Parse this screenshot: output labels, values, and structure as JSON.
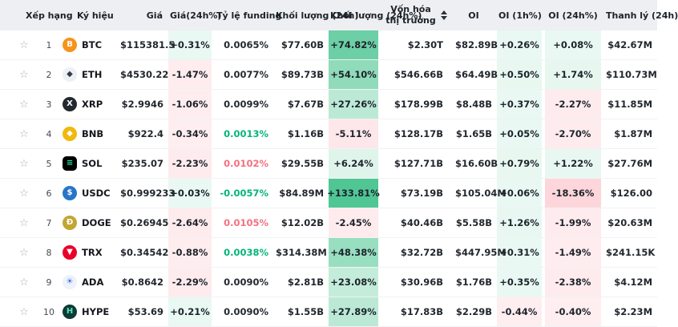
{
  "colors": {
    "header_bg": "#edeff2",
    "positive_rgb": "42,186,124",
    "negative_rgb": "244,88,106",
    "funding_green": "#04b578",
    "funding_red": "#f4707f",
    "row_border": "#f1f2f4"
  },
  "table": {
    "columns": [
      {
        "key": "rank",
        "label": "Xếp hạng"
      },
      {
        "key": "symbol",
        "label": "Ký hiệu"
      },
      {
        "key": "price",
        "label": "Giá"
      },
      {
        "key": "price_chg",
        "label": "Giá(24h%)"
      },
      {
        "key": "funding",
        "label": "Tỷ lệ funding"
      },
      {
        "key": "volume",
        "label": "Khối lượng (24h)"
      },
      {
        "key": "volume_chg",
        "label": "Khối lượng (24h%)"
      },
      {
        "key": "mcap",
        "label": "Vốn hóa thị trường",
        "sortable": true
      },
      {
        "key": "oi",
        "label": "OI"
      },
      {
        "key": "oi_1h",
        "label": "OI (1h%)"
      },
      {
        "key": "oi_24h",
        "label": "OI (24h%)"
      },
      {
        "key": "liq",
        "label": "Thanh lý (24h)"
      }
    ],
    "rows": [
      {
        "rank": "1",
        "symbol": "BTC",
        "icon": {
          "bg": "#f7931a",
          "fg": "#ffffff",
          "glyph": "B",
          "shape": "circle"
        },
        "price": "$115381.5",
        "price_chg": "+0.31%",
        "funding": "0.0065%",
        "funding_color": "default",
        "volume": "$77.60B",
        "volume_chg": "+74.82%",
        "mcap": "$2.30T",
        "oi": "$82.89B",
        "oi_1h": "+0.26%",
        "oi_24h": "+0.08%",
        "liq": "$42.67M"
      },
      {
        "rank": "2",
        "symbol": "ETH",
        "icon": {
          "bg": "#edf0f4",
          "fg": "#343b46",
          "glyph": "◆",
          "shape": "circle"
        },
        "price": "$4530.22",
        "price_chg": "-1.47%",
        "funding": "0.0077%",
        "funding_color": "default",
        "volume": "$89.73B",
        "volume_chg": "+54.10%",
        "mcap": "$546.66B",
        "oi": "$64.49B",
        "oi_1h": "+0.50%",
        "oi_24h": "+1.74%",
        "liq": "$110.73M"
      },
      {
        "rank": "3",
        "symbol": "XRP",
        "icon": {
          "bg": "#23292f",
          "fg": "#ffffff",
          "glyph": "X",
          "shape": "circle"
        },
        "price": "$2.9946",
        "price_chg": "-1.06%",
        "funding": "0.0099%",
        "funding_color": "default",
        "volume": "$7.67B",
        "volume_chg": "+27.26%",
        "mcap": "$178.99B",
        "oi": "$8.48B",
        "oi_1h": "+0.37%",
        "oi_24h": "-2.27%",
        "liq": "$11.85M"
      },
      {
        "rank": "4",
        "symbol": "BNB",
        "icon": {
          "bg": "#f0b90b",
          "fg": "#ffffff",
          "glyph": "◆",
          "shape": "circle"
        },
        "price": "$922.4",
        "price_chg": "-0.34%",
        "funding": "0.0013%",
        "funding_color": "green",
        "volume": "$1.16B",
        "volume_chg": "-5.11%",
        "mcap": "$128.17B",
        "oi": "$1.65B",
        "oi_1h": "+0.05%",
        "oi_24h": "-2.70%",
        "liq": "$1.87M"
      },
      {
        "rank": "5",
        "symbol": "SOL",
        "icon": {
          "bg": "#000000",
          "fg": "#2ce5a7",
          "glyph": "≡",
          "shape": "square"
        },
        "price": "$235.07",
        "price_chg": "-2.23%",
        "funding": "0.0102%",
        "funding_color": "red",
        "volume": "$29.55B",
        "volume_chg": "+6.24%",
        "mcap": "$127.71B",
        "oi": "$16.60B",
        "oi_1h": "+0.79%",
        "oi_24h": "+1.22%",
        "liq": "$27.76M"
      },
      {
        "rank": "6",
        "symbol": "USDC",
        "icon": {
          "bg": "#2775ca",
          "fg": "#ffffff",
          "glyph": "$",
          "shape": "circle"
        },
        "price": "$0.999233",
        "price_chg": "+0.03%",
        "funding": "-0.0057%",
        "funding_color": "green",
        "volume": "$84.89M",
        "volume_chg": "+133.81%",
        "mcap": "$73.19B",
        "oi": "$105.04M",
        "oi_1h": "+0.06%",
        "oi_24h": "-18.36%",
        "liq": "$126.00"
      },
      {
        "rank": "7",
        "symbol": "DOGE",
        "icon": {
          "bg": "#c2a633",
          "fg": "#ffffff",
          "glyph": "Ð",
          "shape": "circle"
        },
        "price": "$0.26945",
        "price_chg": "-2.64%",
        "funding": "0.0105%",
        "funding_color": "red",
        "volume": "$12.02B",
        "volume_chg": "-2.45%",
        "mcap": "$40.46B",
        "oi": "$5.58B",
        "oi_1h": "+1.26%",
        "oi_24h": "-1.99%",
        "liq": "$20.63M"
      },
      {
        "rank": "8",
        "symbol": "TRX",
        "icon": {
          "bg": "#eb0029",
          "fg": "#ffffff",
          "glyph": "▼",
          "shape": "circle"
        },
        "price": "$0.34542",
        "price_chg": "-0.88%",
        "funding": "0.0038%",
        "funding_color": "green",
        "volume": "$314.38M",
        "volume_chg": "+48.38%",
        "mcap": "$32.72B",
        "oi": "$447.95M",
        "oi_1h": "+0.31%",
        "oi_24h": "-1.49%",
        "liq": "$241.15K"
      },
      {
        "rank": "9",
        "symbol": "ADA",
        "icon": {
          "bg": "#eef2fb",
          "fg": "#2e6ce0",
          "glyph": "☀",
          "shape": "circle"
        },
        "price": "$0.8642",
        "price_chg": "-2.29%",
        "funding": "0.0090%",
        "funding_color": "default",
        "volume": "$2.81B",
        "volume_chg": "+23.08%",
        "mcap": "$30.96B",
        "oi": "$1.76B",
        "oi_1h": "+0.35%",
        "oi_24h": "-2.38%",
        "liq": "$4.12M"
      },
      {
        "rank": "10",
        "symbol": "HYPE",
        "icon": {
          "bg": "#0d3b33",
          "fg": "#4ee6c4",
          "glyph": "H",
          "shape": "circle"
        },
        "price": "$53.69",
        "price_chg": "+0.21%",
        "funding": "0.0090%",
        "funding_color": "default",
        "volume": "$1.55B",
        "volume_chg": "+27.89%",
        "mcap": "$17.83B",
        "oi": "$2.29B",
        "oi_1h": "-0.44%",
        "oi_24h": "-0.40%",
        "liq": "$2.23M"
      }
    ]
  }
}
